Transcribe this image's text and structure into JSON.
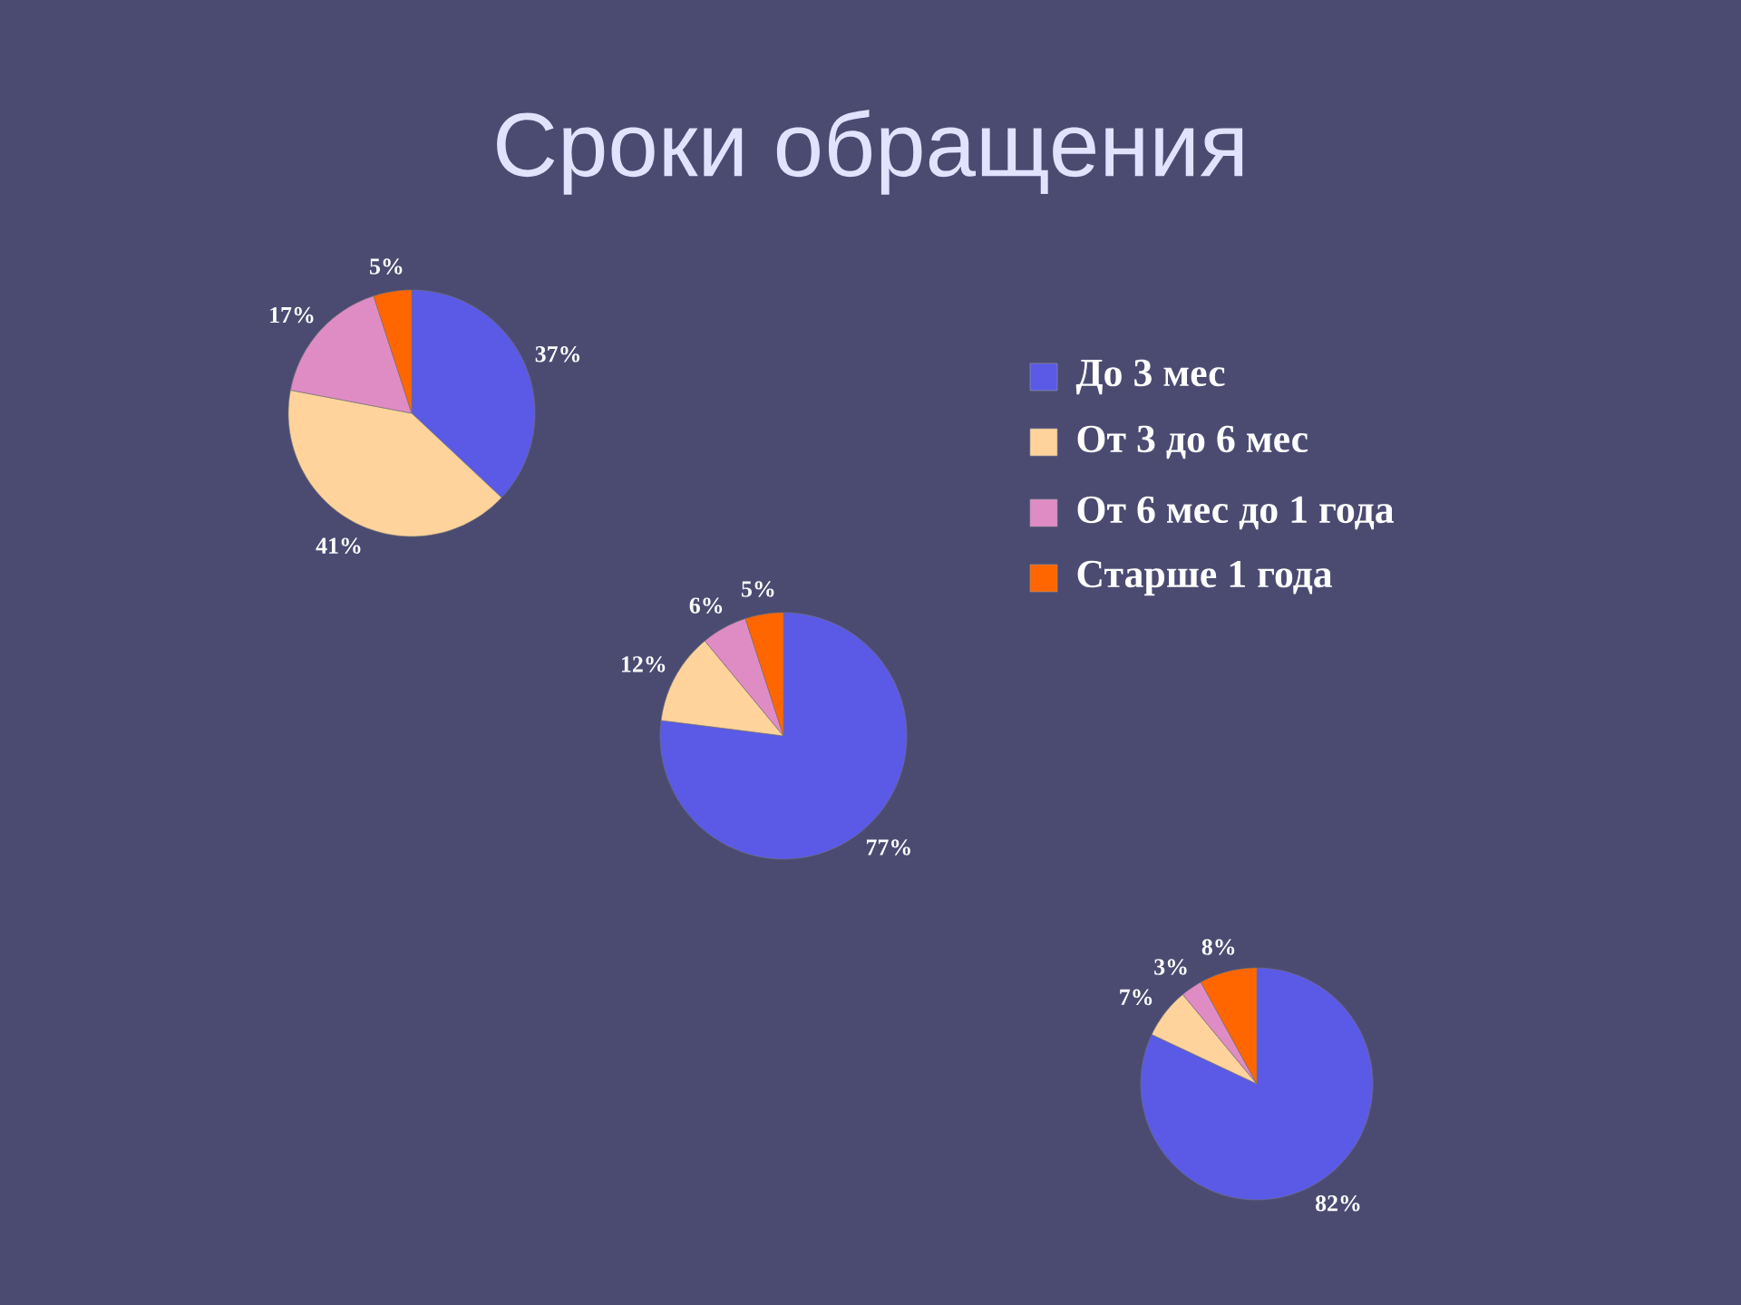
{
  "chart_data": [
    {
      "type": "pie",
      "title": "Сроки обращения",
      "categories": [
        "До 3 мес",
        "От 3 до 6 мес",
        "От 6 мес до 1 года",
        "Старше 1 года"
      ],
      "values": [
        37,
        41,
        17,
        5
      ],
      "value_labels": [
        "37%",
        "41%",
        "17%",
        "5%"
      ],
      "colors": [
        "#5a5ae6",
        "#ffd39b",
        "#e08cc4",
        "#ff6600"
      ],
      "legend": "right"
    },
    {
      "type": "pie",
      "categories": [
        null,
        null,
        null,
        null
      ],
      "values": [
        77,
        12,
        6,
        5
      ],
      "value_labels": [
        "77%",
        "12%",
        "6%",
        "5%"
      ],
      "colors": [
        "#5a5ae6",
        "#ffd39b",
        "#e08cc4",
        "#ff6600"
      ]
    },
    {
      "type": "pie",
      "categories": [
        null,
        null,
        null,
        null
      ],
      "values": [
        82,
        7,
        3,
        8
      ],
      "value_labels": [
        "82%",
        "7%",
        "3%",
        "8%"
      ],
      "colors": [
        "#5a5ae6",
        "#ffd39b",
        "#e08cc4",
        "#ff6600"
      ]
    }
  ]
}
